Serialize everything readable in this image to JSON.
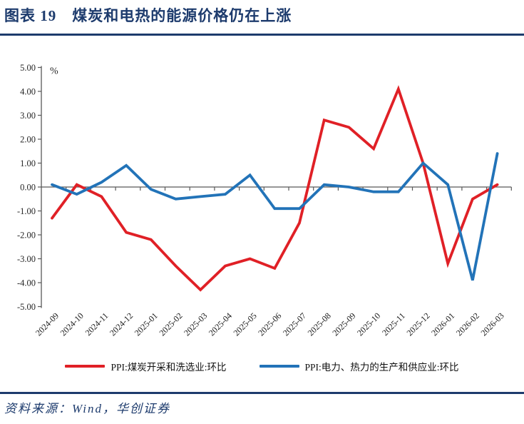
{
  "header": {
    "title": "图表 19　煤炭和电热的能源价格仍在上涨"
  },
  "chart_data": {
    "type": "line",
    "title": "",
    "unit_label": "%",
    "xlabel": "",
    "ylabel": "%",
    "ylim": [
      -5.0,
      5.0
    ],
    "ytick_step": 1.0,
    "ytick_decimals": 2,
    "grid": false,
    "legend_position": "bottom",
    "categories": [
      "2024-09",
      "2024-10",
      "2024-11",
      "2024-12",
      "2025-01",
      "2025-02",
      "2025-03",
      "2025-04",
      "2025-05",
      "2025-06",
      "2025-07",
      "2025-08",
      "2025-09",
      "2025-10",
      "2025-11",
      "2025-12",
      "2026-01",
      "2026-02",
      "2026-03"
    ],
    "series": [
      {
        "name": "PPI:煤炭开采和洗选业:环比",
        "color": "#e02026",
        "values": [
          -1.3,
          0.1,
          -0.4,
          -1.9,
          -2.2,
          -3.3,
          -4.3,
          -3.3,
          -3.0,
          -3.4,
          -1.5,
          2.8,
          2.5,
          1.6,
          4.1,
          1.0,
          -3.2,
          -0.5,
          0.1
        ]
      },
      {
        "name": "PPI:电力、热力的生产和供应业:环比",
        "color": "#2273b8",
        "values": [
          0.1,
          -0.3,
          0.2,
          0.9,
          -0.1,
          -0.5,
          -0.4,
          -0.3,
          0.5,
          -0.9,
          -0.9,
          0.1,
          0.0,
          -0.2,
          -0.2,
          1.0,
          0.1,
          -3.9,
          1.4
        ]
      }
    ]
  },
  "footer": {
    "source": "资料来源：Wind，华创证券"
  },
  "colors": {
    "accent_navy": "#1d3b6d",
    "axis_line": "#595959",
    "tick_text": "#262626"
  }
}
